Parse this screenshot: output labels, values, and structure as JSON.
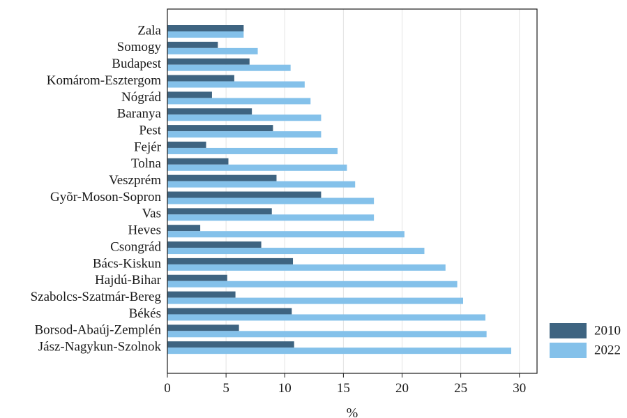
{
  "chart_data": {
    "type": "bar",
    "orientation": "horizontal",
    "categories": [
      "Zala",
      "Somogy",
      "Budapest",
      "Komárom-Esztergom",
      "Nógrád",
      "Baranya",
      "Pest",
      "Fejér",
      "Tolna",
      "Veszprém",
      "Gyõr-Moson-Sopron",
      "Vas",
      "Heves",
      "Csongrád",
      "Bács-Kiskun",
      "Hajdú-Bihar",
      "Szabolcs-Szatmár-Bereg",
      "Békés",
      "Borsod-Abaúj-Zemplén",
      "Jász-Nagykun-Szolnok"
    ],
    "series": [
      {
        "name": "2010",
        "color": "#3e6481",
        "values": [
          6.5,
          4.3,
          7.0,
          5.7,
          3.8,
          7.2,
          9.0,
          3.3,
          5.2,
          9.3,
          13.1,
          8.9,
          2.8,
          8.0,
          10.7,
          5.1,
          5.8,
          10.6,
          6.1,
          10.8
        ]
      },
      {
        "name": "2022",
        "color": "#84c1ea",
        "values": [
          6.5,
          7.7,
          10.5,
          11.7,
          12.2,
          13.1,
          13.1,
          14.5,
          15.3,
          16.0,
          17.6,
          17.6,
          20.2,
          21.9,
          23.7,
          24.7,
          25.2,
          27.1,
          27.2,
          29.3
        ]
      }
    ],
    "xlabel": "%",
    "ylabel": "",
    "xlim": [
      0,
      31.5
    ],
    "xticks": [
      0,
      5,
      10,
      15,
      20,
      25,
      30
    ],
    "grid": "vertical",
    "legend_position": "bottom-right"
  }
}
